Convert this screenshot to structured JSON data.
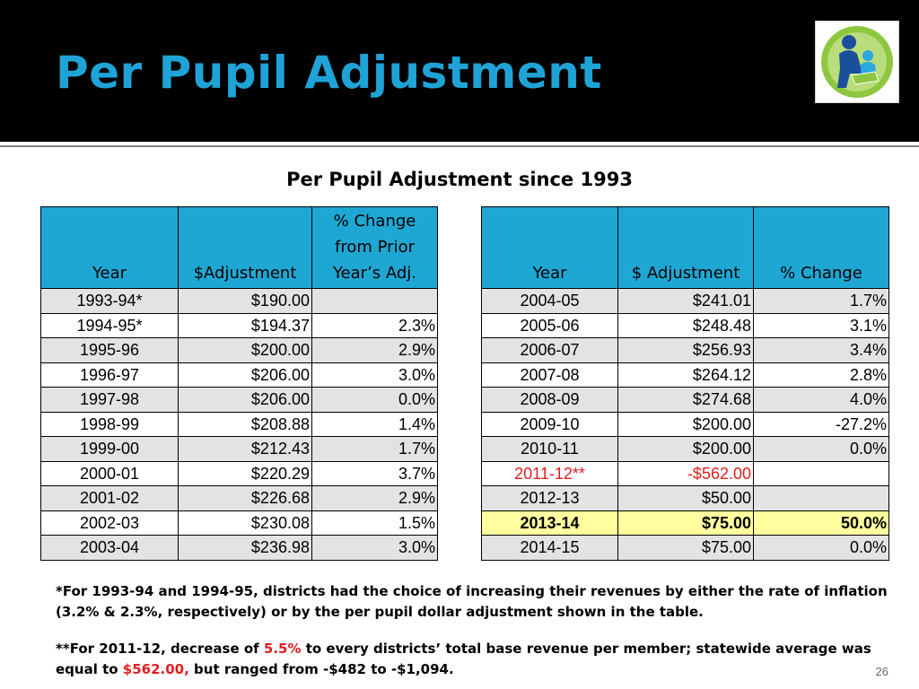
{
  "slide": {
    "title": "Per Pupil Adjustment",
    "page_number": "26",
    "logo_icon": "adult-child-reading-logo-icon"
  },
  "table": {
    "caption": "Per Pupil Adjustment since 1993",
    "left": {
      "headers": [
        "Year",
        "$Adjustment",
        "% Change from Prior Year’s Adj."
      ],
      "rows": [
        {
          "year": "1993-94*",
          "adjustment": "$190.00",
          "change": ""
        },
        {
          "year": "1994-95*",
          "adjustment": "$194.37",
          "change": "2.3%"
        },
        {
          "year": "1995-96",
          "adjustment": "$200.00",
          "change": "2.9%"
        },
        {
          "year": "1996-97",
          "adjustment": "$206.00",
          "change": "3.0%"
        },
        {
          "year": "1997-98",
          "adjustment": "$206.00",
          "change": "0.0%"
        },
        {
          "year": "1998-99",
          "adjustment": "$208.88",
          "change": "1.4%"
        },
        {
          "year": "1999-00",
          "adjustment": "$212.43",
          "change": "1.7%"
        },
        {
          "year": "2000-01",
          "adjustment": "$220.29",
          "change": "3.7%"
        },
        {
          "year": "2001-02",
          "adjustment": "$226.68",
          "change": "2.9%"
        },
        {
          "year": "2002-03",
          "adjustment": "$230.08",
          "change": "1.5%"
        },
        {
          "year": "2003-04",
          "adjustment": "$236.98",
          "change": "3.0%"
        }
      ]
    },
    "right": {
      "headers": [
        "Year",
        "$ Adjustment",
        "% Change"
      ],
      "rows": [
        {
          "year": "2004-05",
          "adjustment": "$241.01",
          "change": "1.7%"
        },
        {
          "year": "2005-06",
          "adjustment": "$248.48",
          "change": "3.1%"
        },
        {
          "year": "2006-07",
          "adjustment": "$256.93",
          "change": "3.4%"
        },
        {
          "year": "2007-08",
          "adjustment": "$264.12",
          "change": "2.8%"
        },
        {
          "year": "2008-09",
          "adjustment": "$274.68",
          "change": "4.0%"
        },
        {
          "year": "2009-10",
          "adjustment": "$200.00",
          "change": "-27.2%"
        },
        {
          "year": "2010-11",
          "adjustment": "$200.00",
          "change": "0.0%"
        },
        {
          "year": "2011-12**",
          "adjustment": "-$562.00",
          "change": ""
        },
        {
          "year": "2012-13",
          "adjustment": "$50.00",
          "change": ""
        },
        {
          "year": "2013-14",
          "adjustment": "$75.00",
          "change": "50.0%"
        },
        {
          "year": "2014-15",
          "adjustment": "$75.00",
          "change": "0.0%"
        }
      ]
    }
  },
  "notes": {
    "note1": "*For 1993-94 and 1994-95, districts had the choice of  increasing their revenues by either the rate of inflation (3.2% & 2.3%, respectively) or by the per pupil dollar adjustment shown in the table.",
    "note2_a": "**For 2011-12, decrease of ",
    "note2_b": "5.5%",
    "note2_c": " to every districts’ total base revenue per member; statewide average was equal to  ",
    "note2_d": "$562.00,",
    "note2_e": " but ranged from -$482 to -$1,094."
  },
  "colors": {
    "title": "#1fa3d6",
    "header_fill": "#1fa7d4",
    "alt_row": "#e3e3e3",
    "highlight_row": "#ffffa0",
    "negative": "#e11e1e"
  }
}
